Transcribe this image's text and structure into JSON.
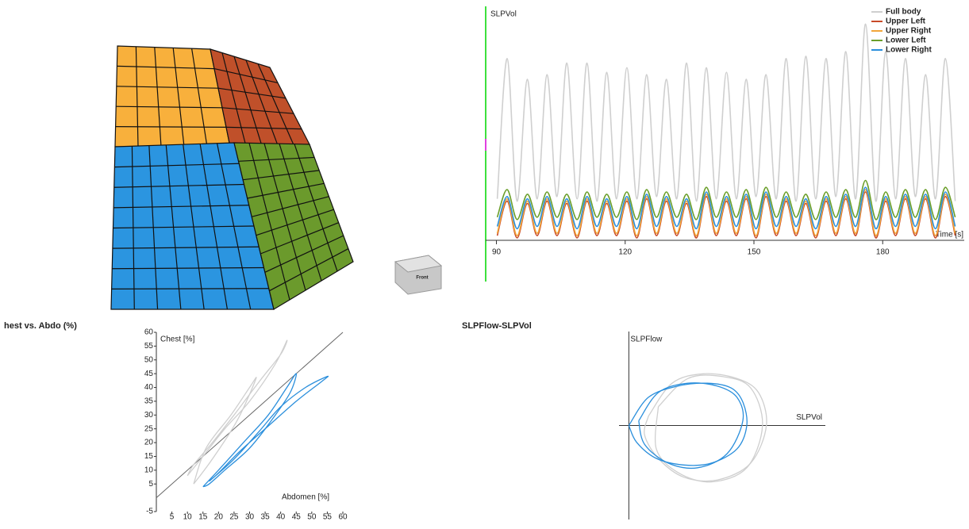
{
  "view_cube": {
    "label": "Front"
  },
  "chart_data": [
    {
      "type": "line",
      "y_label": "SLPVol",
      "x_label": "Time [s]",
      "x": [
        90.2,
        92.5,
        94.8,
        97.2,
        99.5,
        101.8,
        104.1,
        106.4,
        108.8,
        111.1,
        113.4,
        115.7,
        118,
        120.4,
        122.7,
        125,
        127.3,
        129.6,
        132,
        134.3,
        136.6,
        138.9,
        141.2,
        143.6,
        145.9,
        148.2,
        150.5,
        152.8,
        155.2,
        157.5,
        159.8,
        162.1,
        164.4,
        166.8,
        169.1,
        171.4,
        173.7,
        176,
        178.4,
        180.7,
        183,
        185.3,
        187.6,
        190,
        192.3,
        194.6,
        196.9
      ],
      "xlim": [
        87.5,
        199
      ],
      "xticks": [
        90,
        120,
        150,
        180
      ],
      "ylim": [
        0,
        100
      ],
      "legend": "top-right",
      "series": [
        {
          "name": "Full body",
          "color": "#cfcfcf",
          "values": [
            17,
            78,
            16,
            69,
            17,
            71,
            18,
            76,
            17,
            76,
            16,
            72,
            17,
            74,
            17,
            71,
            18,
            69,
            17,
            76,
            16,
            74,
            17,
            72,
            17,
            69,
            18,
            71,
            17,
            78,
            16,
            79,
            17,
            78,
            18,
            81,
            17,
            93,
            16,
            81,
            17,
            78,
            18,
            71,
            17,
            78,
            16
          ]
        },
        {
          "name": "Upper Left",
          "color": "#c84a28",
          "values": [
            1,
            16,
            0,
            15,
            1,
            16,
            1,
            15,
            0,
            16,
            1,
            15,
            1,
            16,
            0,
            17,
            1,
            16,
            1,
            15,
            0,
            18,
            1,
            16,
            1,
            17,
            0,
            18,
            1,
            16,
            1,
            15,
            0,
            16,
            1,
            17,
            1,
            20,
            0,
            16,
            1,
            17,
            1,
            17,
            0,
            18,
            1
          ]
        },
        {
          "name": "Upper Right",
          "color": "#f2a63a",
          "values": [
            2,
            17,
            1,
            16,
            2,
            17,
            2,
            16,
            1,
            17,
            2,
            16,
            2,
            17,
            1,
            18,
            2,
            17,
            2,
            16,
            1,
            19,
            2,
            17,
            2,
            18,
            1,
            19,
            2,
            17,
            2,
            16,
            1,
            17,
            2,
            18,
            2,
            21,
            1,
            17,
            2,
            18,
            2,
            18,
            1,
            19,
            2
          ]
        },
        {
          "name": "Lower Left",
          "color": "#6a9e2a",
          "values": [
            9,
            21,
            8,
            19,
            9,
            20,
            9,
            19,
            8,
            20,
            9,
            19,
            9,
            20,
            8,
            21,
            9,
            20,
            9,
            19,
            8,
            22,
            9,
            20,
            9,
            21,
            8,
            22,
            9,
            20,
            9,
            19,
            8,
            20,
            9,
            21,
            9,
            25,
            8,
            20,
            9,
            21,
            9,
            21,
            8,
            22,
            9
          ]
        },
        {
          "name": "Lower Right",
          "color": "#2b8fdc",
          "values": [
            5,
            18,
            4,
            17,
            5,
            18,
            5,
            17,
            4,
            18,
            5,
            17,
            5,
            18,
            4,
            19,
            5,
            18,
            5,
            17,
            4,
            20,
            5,
            18,
            5,
            19,
            4,
            20,
            5,
            18,
            5,
            17,
            4,
            18,
            5,
            19,
            5,
            22,
            4,
            18,
            5,
            19,
            5,
            19,
            4,
            20,
            5
          ]
        }
      ]
    },
    {
      "type": "loop",
      "title": "hest vs. Abdo (%)",
      "x_label": "Abdomen [%]",
      "y_label": "Chest [%]",
      "xlim": [
        0,
        60
      ],
      "ylim": [
        -5,
        60
      ],
      "xticks": [
        5,
        10,
        15,
        20,
        25,
        30,
        35,
        40,
        45,
        50,
        55,
        60
      ],
      "yticks": [
        -5,
        5,
        10,
        15,
        20,
        25,
        30,
        35,
        40,
        45,
        50,
        55,
        60
      ],
      "series": [
        {
          "color": "#cfcfcf",
          "x": [
            10,
            15,
            22,
            30,
            38,
            42,
            40,
            33,
            25,
            18,
            12,
            10
          ],
          "values": [
            8,
            15,
            25,
            35,
            48,
            57,
            52,
            42,
            30,
            20,
            12,
            8
          ]
        },
        {
          "color": "#cfcfcf",
          "x": [
            12,
            18,
            26,
            32,
            30,
            24,
            16,
            12
          ],
          "values": [
            5,
            14,
            28,
            43,
            40,
            30,
            18,
            5
          ]
        },
        {
          "color": "#2b8fdc",
          "x": [
            15,
            20,
            28,
            36,
            42,
            45,
            43,
            37,
            30,
            22,
            17,
            15
          ],
          "values": [
            4,
            10,
            20,
            30,
            40,
            45,
            38,
            28,
            18,
            10,
            5,
            4
          ]
        },
        {
          "color": "#2b8fdc",
          "x": [
            17,
            25,
            33,
            40,
            48,
            55,
            53,
            45,
            36,
            27,
            20,
            17
          ],
          "values": [
            6,
            14,
            24,
            33,
            40,
            44,
            42,
            35,
            26,
            17,
            9,
            6
          ]
        }
      ]
    },
    {
      "type": "loop",
      "title": "SLPFlow-SLPVol",
      "x_label": "SLPVol",
      "y_label": "SLPFlow",
      "xlim": [
        -5,
        100
      ],
      "ylim": [
        -100,
        100
      ],
      "series": [
        {
          "color": "#cfcfcf",
          "x": [
            10,
            22,
            38,
            55,
            66,
            70,
            62,
            45,
            28,
            15,
            8,
            10
          ],
          "values": [
            10,
            45,
            55,
            50,
            35,
            0,
            -40,
            -58,
            -55,
            -35,
            -10,
            10
          ]
        },
        {
          "color": "#cfcfcf",
          "x": [
            15,
            30,
            48,
            62,
            68,
            60,
            42,
            25,
            14,
            15
          ],
          "values": [
            20,
            50,
            52,
            40,
            0,
            -45,
            -60,
            -50,
            -25,
            20
          ]
        },
        {
          "color": "#2b8fdc",
          "x": [
            0,
            10,
            25,
            40,
            52,
            58,
            60,
            55,
            42,
            28,
            14,
            4,
            0
          ],
          "values": [
            0,
            30,
            42,
            45,
            40,
            25,
            0,
            -25,
            -40,
            -42,
            -35,
            -18,
            0
          ]
        },
        {
          "color": "#2b8fdc",
          "x": [
            5,
            15,
            30,
            45,
            55,
            58,
            50,
            35,
            20,
            8,
            5
          ],
          "values": [
            5,
            35,
            45,
            42,
            30,
            5,
            -30,
            -45,
            -40,
            -20,
            5
          ]
        }
      ]
    }
  ]
}
